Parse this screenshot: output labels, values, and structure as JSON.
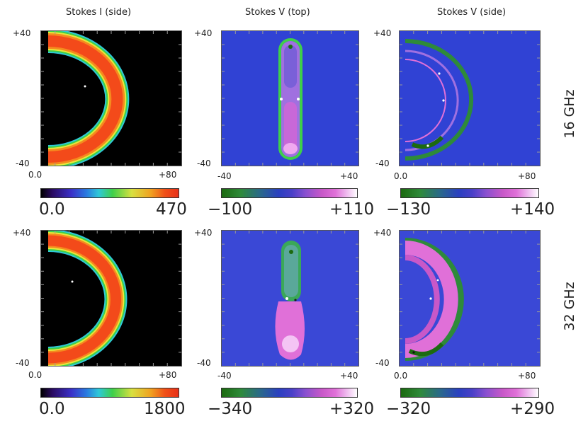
{
  "columns": [
    {
      "title": "Stokes I (side)"
    },
    {
      "title": "Stokes V (top)"
    },
    {
      "title": "Stokes V (side)"
    }
  ],
  "rows": [
    {
      "label": "16 GHz",
      "colorbars": [
        {
          "min": "0.0",
          "max": "470"
        },
        {
          "min": "−100",
          "max": "+110"
        },
        {
          "min": "−130",
          "max": "+140"
        }
      ]
    },
    {
      "label": "32 GHz",
      "colorbars": [
        {
          "min": "0.0",
          "max": "1800"
        },
        {
          "min": "−340",
          "max": "+320"
        },
        {
          "min": "−320",
          "max": "+290"
        }
      ]
    }
  ],
  "axes": {
    "side": {
      "y_top": "+40",
      "y_bottom": "-40",
      "x_left": "0.0",
      "x_right": "+80"
    },
    "top": {
      "y_top": "+40",
      "y_bottom": "-40",
      "x_left": "-40",
      "x_right": "+40"
    }
  },
  "colors": {
    "panel_black": "#000000",
    "panel_blue": "#3042d4",
    "panel_blue_row2": "#3a48d6",
    "ring_red": "#f34a1a",
    "ring_orange": "#f58a1e",
    "ring_yellow": "#e8e83a",
    "ring_green": "#3ecf4a",
    "ring_cyan": "#2ec8d8",
    "v_green": "#2e8a3a",
    "v_magenta": "#e070d8",
    "v_violet": "#a070e0"
  },
  "colormaps": {
    "intensity": [
      "#000000",
      "#2a0a60",
      "#3a30c8",
      "#2a7ae0",
      "#2ec8d8",
      "#3ecf4a",
      "#d8e040",
      "#f0a020",
      "#f05018",
      "#e83018"
    ],
    "signed": [
      "#1c6a10",
      "#2e8a3a",
      "#2a6a88",
      "#2a40c0",
      "#4a40c8",
      "#8a50d0",
      "#c858c8",
      "#e070d8",
      "#f0c0f0",
      "#ffffff"
    ]
  }
}
